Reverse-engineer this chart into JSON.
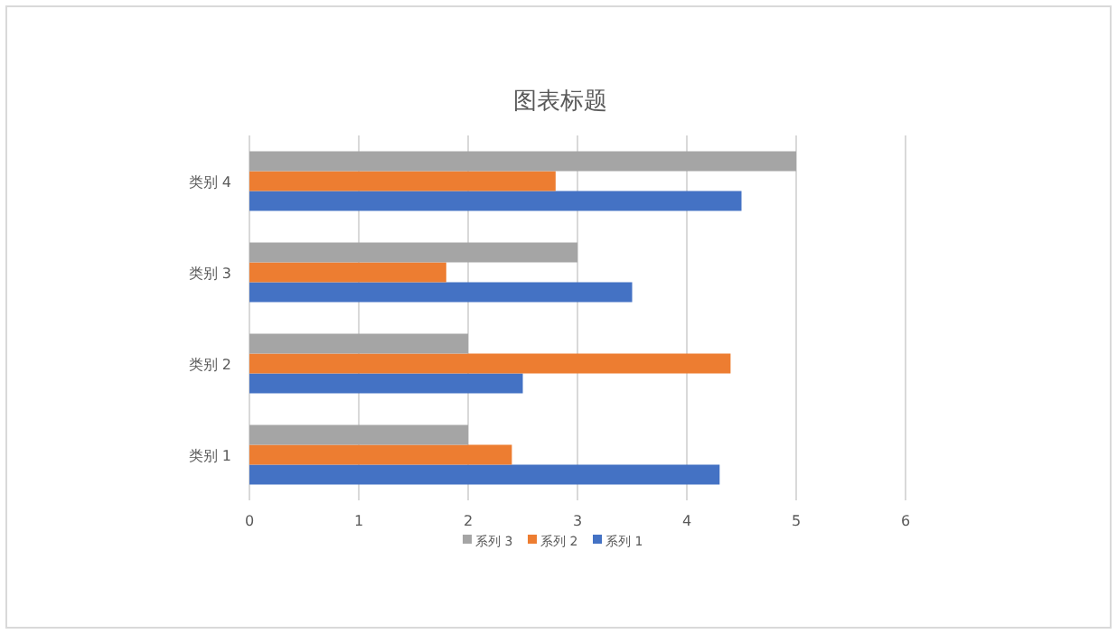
{
  "chart_data": {
    "type": "bar",
    "orientation": "horizontal",
    "title": "图表标题",
    "categories": [
      "类别 4",
      "类别 3",
      "类别 2",
      "类别 1"
    ],
    "series": [
      {
        "name": "系列 1",
        "color": "#4472c4",
        "values": [
          4.5,
          3.5,
          2.5,
          4.3
        ]
      },
      {
        "name": "系列 2",
        "color": "#ed7d31",
        "values": [
          2.8,
          1.8,
          4.4,
          2.4
        ]
      },
      {
        "name": "系列 3",
        "color": "#a5a5a5",
        "values": [
          5,
          3,
          2,
          2
        ]
      }
    ],
    "xlim": [
      0,
      6
    ],
    "xticks": [
      0,
      1,
      2,
      3,
      4,
      5,
      6
    ],
    "grid": "x",
    "legend": "bottom"
  }
}
